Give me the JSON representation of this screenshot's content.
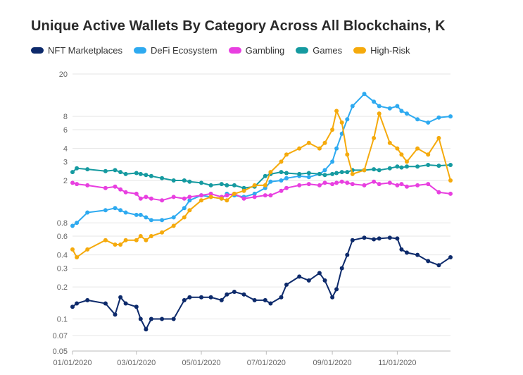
{
  "chart_data": {
    "type": "line",
    "title": "Unique Active Wallets By Category Across All Blockchains, K",
    "yscale": "log",
    "ylim": [
      0.05,
      20
    ],
    "yticks": [
      0.05,
      0.07,
      0.1,
      0.2,
      0.3,
      0.4,
      0.6,
      0.8,
      2,
      3,
      4,
      6,
      8,
      20
    ],
    "ytick_labels": [
      "0.05",
      "0.07",
      "0.1",
      "0.2",
      "0.3",
      "0.4",
      "0.6",
      "0.8",
      "2",
      "3",
      "4",
      "6",
      "8",
      "20"
    ],
    "xlim": [
      "2020-01-01",
      "2020-12-21"
    ],
    "xticks": [
      "2020-01-01",
      "2020-03-01",
      "2020-05-01",
      "2020-07-01",
      "2020-09-01",
      "2020-11-01"
    ],
    "xtick_labels": [
      "01/01/2020",
      "03/01/2020",
      "05/01/2020",
      "07/01/2020",
      "09/01/2020",
      "11/01/2020"
    ],
    "grid": "horizontal",
    "legend_position": "top-left",
    "series": [
      {
        "name": "NFT Marketplaces",
        "color": "#0d2a6b",
        "x": [
          "2020-01-01",
          "2020-01-05",
          "2020-01-15",
          "2020-02-01",
          "2020-02-10",
          "2020-02-15",
          "2020-02-20",
          "2020-03-01",
          "2020-03-05",
          "2020-03-10",
          "2020-03-15",
          "2020-03-25",
          "2020-04-05",
          "2020-04-15",
          "2020-04-20",
          "2020-05-01",
          "2020-05-10",
          "2020-05-20",
          "2020-05-25",
          "2020-06-01",
          "2020-06-10",
          "2020-06-20",
          "2020-06-30",
          "2020-07-05",
          "2020-07-15",
          "2020-07-20",
          "2020-08-01",
          "2020-08-10",
          "2020-08-20",
          "2020-08-25",
          "2020-09-01",
          "2020-09-05",
          "2020-09-10",
          "2020-09-15",
          "2020-09-20",
          "2020-10-01",
          "2020-10-10",
          "2020-10-15",
          "2020-10-25",
          "2020-11-01",
          "2020-11-05",
          "2020-11-10",
          "2020-11-20",
          "2020-11-30",
          "2020-12-10",
          "2020-12-21"
        ],
        "values": [
          0.13,
          0.14,
          0.15,
          0.14,
          0.11,
          0.16,
          0.14,
          0.13,
          0.1,
          0.08,
          0.1,
          0.1,
          0.1,
          0.15,
          0.16,
          0.16,
          0.16,
          0.15,
          0.17,
          0.18,
          0.17,
          0.15,
          0.15,
          0.14,
          0.16,
          0.21,
          0.25,
          0.23,
          0.27,
          0.23,
          0.16,
          0.19,
          0.3,
          0.4,
          0.55,
          0.58,
          0.56,
          0.57,
          0.58,
          0.57,
          0.45,
          0.42,
          0.4,
          0.35,
          0.32,
          0.38
        ]
      },
      {
        "name": "DeFi Ecosystem",
        "color": "#2eaaf0",
        "x": [
          "2020-01-01",
          "2020-01-05",
          "2020-01-15",
          "2020-02-01",
          "2020-02-10",
          "2020-02-15",
          "2020-02-20",
          "2020-03-01",
          "2020-03-05",
          "2020-03-10",
          "2020-03-15",
          "2020-03-25",
          "2020-04-05",
          "2020-04-15",
          "2020-04-20",
          "2020-05-01",
          "2020-05-10",
          "2020-05-20",
          "2020-05-25",
          "2020-06-01",
          "2020-06-10",
          "2020-06-20",
          "2020-06-30",
          "2020-07-05",
          "2020-07-15",
          "2020-07-20",
          "2020-08-01",
          "2020-08-10",
          "2020-08-20",
          "2020-08-25",
          "2020-09-01",
          "2020-09-05",
          "2020-09-10",
          "2020-09-15",
          "2020-09-20",
          "2020-10-01",
          "2020-10-10",
          "2020-10-15",
          "2020-10-25",
          "2020-11-01",
          "2020-11-05",
          "2020-11-10",
          "2020-11-20",
          "2020-11-30",
          "2020-12-10",
          "2020-12-21"
        ],
        "values": [
          0.75,
          0.8,
          1.0,
          1.05,
          1.1,
          1.05,
          1.0,
          0.95,
          0.95,
          0.9,
          0.85,
          0.85,
          0.9,
          1.1,
          1.3,
          1.45,
          1.4,
          1.35,
          1.5,
          1.45,
          1.4,
          1.5,
          1.7,
          1.95,
          2.0,
          2.1,
          2.2,
          2.15,
          2.3,
          2.5,
          3.0,
          4.0,
          5.5,
          7.5,
          10.0,
          13.0,
          11.0,
          10.0,
          9.5,
          10.0,
          9.0,
          8.5,
          7.5,
          7.0,
          7.8,
          8.0
        ]
      },
      {
        "name": "Gambling",
        "color": "#e83fe0",
        "x": [
          "2020-01-01",
          "2020-01-05",
          "2020-01-15",
          "2020-02-01",
          "2020-02-10",
          "2020-02-15",
          "2020-02-20",
          "2020-03-01",
          "2020-03-05",
          "2020-03-10",
          "2020-03-15",
          "2020-03-25",
          "2020-04-05",
          "2020-04-15",
          "2020-04-20",
          "2020-05-01",
          "2020-05-10",
          "2020-05-20",
          "2020-05-25",
          "2020-06-01",
          "2020-06-10",
          "2020-06-20",
          "2020-06-30",
          "2020-07-05",
          "2020-07-15",
          "2020-07-20",
          "2020-08-01",
          "2020-08-10",
          "2020-08-20",
          "2020-08-25",
          "2020-09-01",
          "2020-09-05",
          "2020-09-10",
          "2020-09-15",
          "2020-09-20",
          "2020-10-01",
          "2020-10-10",
          "2020-10-15",
          "2020-10-25",
          "2020-11-01",
          "2020-11-05",
          "2020-11-10",
          "2020-11-20",
          "2020-11-30",
          "2020-12-10",
          "2020-12-21"
        ],
        "values": [
          1.9,
          1.85,
          1.8,
          1.7,
          1.75,
          1.65,
          1.55,
          1.5,
          1.35,
          1.4,
          1.35,
          1.3,
          1.4,
          1.35,
          1.4,
          1.45,
          1.5,
          1.4,
          1.45,
          1.5,
          1.35,
          1.4,
          1.45,
          1.45,
          1.6,
          1.7,
          1.8,
          1.85,
          1.8,
          1.9,
          1.85,
          1.9,
          1.95,
          1.9,
          1.85,
          1.8,
          1.95,
          1.85,
          1.9,
          1.8,
          1.85,
          1.75,
          1.8,
          1.85,
          1.55,
          1.5
        ]
      },
      {
        "name": "Games",
        "color": "#159aa0",
        "x": [
          "2020-01-01",
          "2020-01-05",
          "2020-01-15",
          "2020-02-01",
          "2020-02-10",
          "2020-02-15",
          "2020-02-20",
          "2020-03-01",
          "2020-03-05",
          "2020-03-10",
          "2020-03-15",
          "2020-03-25",
          "2020-04-05",
          "2020-04-15",
          "2020-04-20",
          "2020-05-01",
          "2020-05-10",
          "2020-05-20",
          "2020-05-25",
          "2020-06-01",
          "2020-06-10",
          "2020-06-20",
          "2020-06-30",
          "2020-07-05",
          "2020-07-15",
          "2020-07-20",
          "2020-08-01",
          "2020-08-10",
          "2020-08-20",
          "2020-08-25",
          "2020-09-01",
          "2020-09-05",
          "2020-09-10",
          "2020-09-15",
          "2020-09-20",
          "2020-10-01",
          "2020-10-10",
          "2020-10-15",
          "2020-10-25",
          "2020-11-01",
          "2020-11-05",
          "2020-11-10",
          "2020-11-20",
          "2020-11-30",
          "2020-12-10",
          "2020-12-21"
        ],
        "values": [
          2.4,
          2.6,
          2.55,
          2.45,
          2.5,
          2.4,
          2.3,
          2.35,
          2.3,
          2.25,
          2.2,
          2.1,
          2.0,
          2.0,
          1.95,
          1.9,
          1.8,
          1.85,
          1.8,
          1.8,
          1.7,
          1.75,
          2.2,
          2.3,
          2.4,
          2.35,
          2.3,
          2.35,
          2.3,
          2.25,
          2.3,
          2.35,
          2.4,
          2.4,
          2.5,
          2.5,
          2.55,
          2.5,
          2.6,
          2.7,
          2.65,
          2.7,
          2.7,
          2.8,
          2.75,
          2.8
        ]
      },
      {
        "name": "High-Risk",
        "color": "#f5aa0c",
        "x": [
          "2020-01-01",
          "2020-01-05",
          "2020-01-15",
          "2020-02-01",
          "2020-02-10",
          "2020-02-15",
          "2020-02-20",
          "2020-03-01",
          "2020-03-05",
          "2020-03-10",
          "2020-03-15",
          "2020-03-25",
          "2020-04-05",
          "2020-04-15",
          "2020-04-20",
          "2020-05-01",
          "2020-05-10",
          "2020-05-20",
          "2020-05-25",
          "2020-06-01",
          "2020-06-10",
          "2020-06-20",
          "2020-06-30",
          "2020-07-05",
          "2020-07-15",
          "2020-07-20",
          "2020-08-01",
          "2020-08-10",
          "2020-08-20",
          "2020-08-25",
          "2020-09-01",
          "2020-09-05",
          "2020-09-10",
          "2020-09-15",
          "2020-09-20",
          "2020-10-01",
          "2020-10-10",
          "2020-10-15",
          "2020-10-25",
          "2020-11-01",
          "2020-11-05",
          "2020-11-10",
          "2020-11-20",
          "2020-11-30",
          "2020-12-10",
          "2020-12-21"
        ],
        "values": [
          0.45,
          0.38,
          0.45,
          0.55,
          0.5,
          0.5,
          0.55,
          0.55,
          0.6,
          0.55,
          0.6,
          0.65,
          0.75,
          0.9,
          1.05,
          1.3,
          1.4,
          1.35,
          1.3,
          1.5,
          1.6,
          1.8,
          1.8,
          2.4,
          3.0,
          3.5,
          4.0,
          4.5,
          4.0,
          4.5,
          6.0,
          9.0,
          7.0,
          3.5,
          2.3,
          2.5,
          5.0,
          8.5,
          4.5,
          4.0,
          3.5,
          3.0,
          4.0,
          3.5,
          5.0,
          2.0
        ]
      }
    ]
  }
}
